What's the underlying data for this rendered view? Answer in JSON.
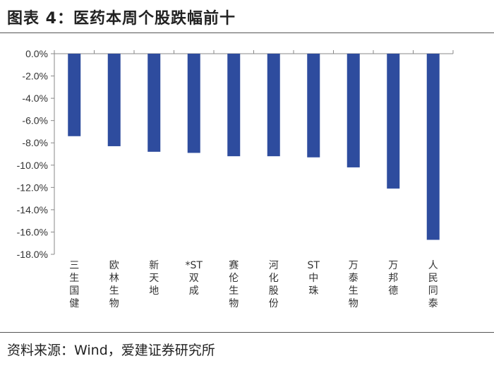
{
  "figure": {
    "title": "图表 4：医药本周个股跌幅前十",
    "source": "资料来源：Wind，爱建证券研究所"
  },
  "chart_data": {
    "type": "bar",
    "title": "",
    "xlabel": "",
    "ylabel": "",
    "categories": [
      "三生国健",
      "欧林生物",
      "新天地",
      "*ST双成",
      "赛伦生物",
      "河化股份",
      "ST中珠",
      "万泰生物",
      "万邦德",
      "人民同泰"
    ],
    "values": [
      -7.4,
      -8.3,
      -8.8,
      -8.9,
      -9.2,
      -9.2,
      -9.3,
      -10.2,
      -12.1,
      -16.7
    ],
    "ylim": [
      -18,
      0
    ],
    "yticks": [
      0,
      -2,
      -4,
      -6,
      -8,
      -10,
      -12,
      -14,
      -16,
      -18
    ],
    "ytick_labels": [
      "0.0%",
      "-2.0%",
      "-4.0%",
      "-6.0%",
      "-8.0%",
      "-10.0%",
      "-12.0%",
      "-14.0%",
      "-16.0%",
      "-18.0%"
    ],
    "grid": false,
    "legend": "none",
    "bar_color": "#2E4C9E"
  }
}
